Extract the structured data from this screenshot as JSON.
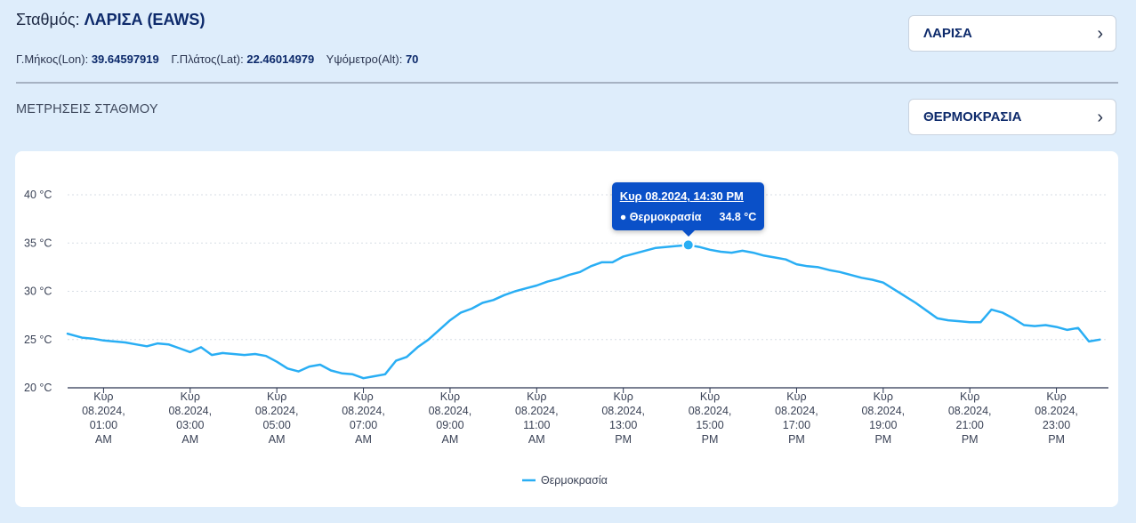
{
  "header": {
    "station_label": "Σταθμός:",
    "station_name": "ΛΑΡΙΣΑ (EAWS)",
    "lon_label": "Γ.Μήκος(Lon):",
    "lon_value": "39.64597919",
    "lat_label": "Γ.Πλάτος(Lat):",
    "lat_value": "22.46014979",
    "alt_label": "Υψόμετρο(Alt):",
    "alt_value": "70"
  },
  "section": {
    "title": "ΜΕΤΡΗΣΕΙΣ ΣΤΑΘΜΟΥ"
  },
  "selectors": {
    "station": {
      "value": "ΛΑΡΙΣΑ",
      "icon": "chevron-right-icon"
    },
    "measurement": {
      "value": "ΘΕΡΜΟΚΡΑΣΙΑ",
      "icon": "chevron-right-icon"
    }
  },
  "tooltip": {
    "title": "Κυρ 08.2024, 14:30 PM",
    "series": "● Θερμοκρασία",
    "value": "34.8 °C"
  },
  "colors": {
    "series": "#29aef4",
    "tooltip_bg": "#0a50c8",
    "title": "#0d2a6b",
    "page_bg": "#deedfb"
  },
  "chart_data": {
    "type": "line",
    "title": "",
    "xlabel": "",
    "ylabel": "",
    "ylim": [
      20,
      40
    ],
    "yticks": [
      20,
      25,
      30,
      35,
      40
    ],
    "ytick_labels": [
      "20 °C",
      "25 °C",
      "30 °C",
      "35 °C",
      "40 °C"
    ],
    "xlim": [
      0.17,
      24.2
    ],
    "xticks": [
      1,
      3,
      5,
      7,
      9,
      11,
      13,
      15,
      17,
      19,
      21,
      23
    ],
    "xtick_labels": [
      [
        "Κυρ",
        "08.2024,",
        "01:00",
        "AM"
      ],
      [
        "Κυρ",
        "08.2024,",
        "03:00",
        "AM"
      ],
      [
        "Κυρ",
        "08.2024,",
        "05:00",
        "AM"
      ],
      [
        "Κυρ",
        "08.2024,",
        "07:00",
        "AM"
      ],
      [
        "Κυρ",
        "08.2024,",
        "09:00",
        "AM"
      ],
      [
        "Κυρ",
        "08.2024,",
        "11:00",
        "AM"
      ],
      [
        "Κυρ",
        "08.2024,",
        "13:00",
        "PM"
      ],
      [
        "Κυρ",
        "08.2024,",
        "15:00",
        "PM"
      ],
      [
        "Κυρ",
        "08.2024,",
        "17:00",
        "PM"
      ],
      [
        "Κυρ",
        "08.2024,",
        "19:00",
        "PM"
      ],
      [
        "Κυρ",
        "08.2024,",
        "21:00",
        "PM"
      ],
      [
        "Κυρ",
        "08.2024,",
        "23:00",
        "PM"
      ]
    ],
    "legend": [
      "Θερμοκρασία"
    ],
    "legend_position": "bottom-center",
    "grid": true,
    "highlight": {
      "x": 14.5,
      "y": 34.8
    },
    "series": [
      {
        "name": "Θερμοκρασία",
        "color": "#29aef4",
        "x": [
          0.17,
          0.5,
          0.75,
          1.0,
          1.25,
          1.5,
          1.75,
          2.0,
          2.25,
          2.5,
          2.75,
          3.0,
          3.25,
          3.5,
          3.75,
          4.0,
          4.25,
          4.5,
          4.75,
          5.0,
          5.25,
          5.5,
          5.75,
          6.0,
          6.25,
          6.5,
          6.75,
          7.0,
          7.25,
          7.5,
          7.75,
          8.0,
          8.25,
          8.5,
          8.75,
          9.0,
          9.25,
          9.5,
          9.75,
          10.0,
          10.25,
          10.5,
          10.75,
          11.0,
          11.25,
          11.5,
          11.75,
          12.0,
          12.25,
          12.5,
          12.75,
          13.0,
          13.25,
          13.5,
          13.75,
          14.0,
          14.25,
          14.5,
          14.75,
          15.0,
          15.25,
          15.5,
          15.75,
          16.0,
          16.25,
          16.5,
          16.75,
          17.0,
          17.25,
          17.5,
          17.75,
          18.0,
          18.25,
          18.5,
          18.75,
          19.0,
          19.25,
          19.5,
          19.75,
          20.0,
          20.25,
          20.5,
          20.75,
          21.0,
          21.25,
          21.5,
          21.75,
          22.0,
          22.25,
          22.5,
          22.75,
          23.0,
          23.25,
          23.5,
          23.75,
          24.0
        ],
        "values": [
          25.6,
          25.2,
          25.1,
          24.9,
          24.8,
          24.7,
          24.5,
          24.3,
          24.6,
          24.5,
          24.1,
          23.7,
          24.2,
          23.4,
          23.6,
          23.5,
          23.4,
          23.5,
          23.3,
          22.7,
          22.0,
          21.7,
          22.2,
          22.4,
          21.8,
          21.5,
          21.4,
          21.0,
          21.2,
          21.4,
          22.8,
          23.2,
          24.2,
          25.0,
          26.0,
          27.0,
          27.8,
          28.2,
          28.8,
          29.1,
          29.6,
          30.0,
          30.3,
          30.6,
          31.0,
          31.3,
          31.7,
          32.0,
          32.6,
          33.0,
          33.0,
          33.6,
          33.9,
          34.2,
          34.5,
          34.6,
          34.7,
          34.8,
          34.6,
          34.3,
          34.1,
          34.0,
          34.2,
          34.0,
          33.7,
          33.5,
          33.3,
          32.8,
          32.6,
          32.5,
          32.2,
          32.0,
          31.7,
          31.4,
          31.2,
          30.9,
          30.2,
          29.5,
          28.8,
          28.0,
          27.2,
          27.0,
          26.9,
          26.8,
          26.8,
          28.1,
          27.8,
          27.2,
          26.5,
          26.4,
          26.5,
          26.3,
          26.0,
          26.2,
          24.8,
          25.0
        ]
      }
    ]
  }
}
